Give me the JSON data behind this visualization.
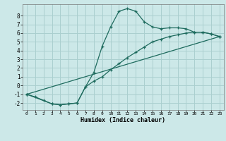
{
  "title": "",
  "xlabel": "Humidex (Indice chaleur)",
  "bg_color": "#cce8e8",
  "grid_color": "#aacfcf",
  "line_color": "#1e6b5e",
  "xlim": [
    -0.5,
    23.5
  ],
  "ylim": [
    -2.8,
    9.3
  ],
  "xticks": [
    0,
    1,
    2,
    3,
    4,
    5,
    6,
    7,
    8,
    9,
    10,
    11,
    12,
    13,
    14,
    15,
    16,
    17,
    18,
    19,
    20,
    21,
    22,
    23
  ],
  "yticks": [
    -2,
    -1,
    0,
    1,
    2,
    3,
    4,
    5,
    6,
    7,
    8
  ],
  "line1_x": [
    0,
    1,
    2,
    3,
    4,
    5,
    6,
    7,
    8,
    9,
    10,
    11,
    12,
    13,
    14,
    15,
    16,
    17,
    18,
    19,
    20,
    21,
    22,
    23
  ],
  "line1_y": [
    -1.0,
    -1.3,
    -1.7,
    -2.1,
    -2.2,
    -2.1,
    -2.0,
    -0.15,
    1.5,
    4.5,
    6.7,
    8.5,
    8.8,
    8.5,
    7.3,
    6.7,
    6.5,
    6.6,
    6.6,
    6.5,
    6.1,
    6.1,
    5.9,
    5.6
  ],
  "line2_x": [
    0,
    3,
    4,
    5,
    6,
    7,
    8,
    9,
    10,
    11,
    12,
    13,
    14,
    15,
    16,
    17,
    18,
    19,
    20,
    21,
    22,
    23
  ],
  "line2_y": [
    -1.0,
    -2.1,
    -2.2,
    -2.1,
    -2.0,
    -0.15,
    0.5,
    1.0,
    1.8,
    2.5,
    3.2,
    3.8,
    4.4,
    5.0,
    5.3,
    5.6,
    5.8,
    6.0,
    6.1,
    6.1,
    5.9,
    5.6
  ],
  "line3_x": [
    0,
    23
  ],
  "line3_y": [
    -1.0,
    5.6
  ]
}
